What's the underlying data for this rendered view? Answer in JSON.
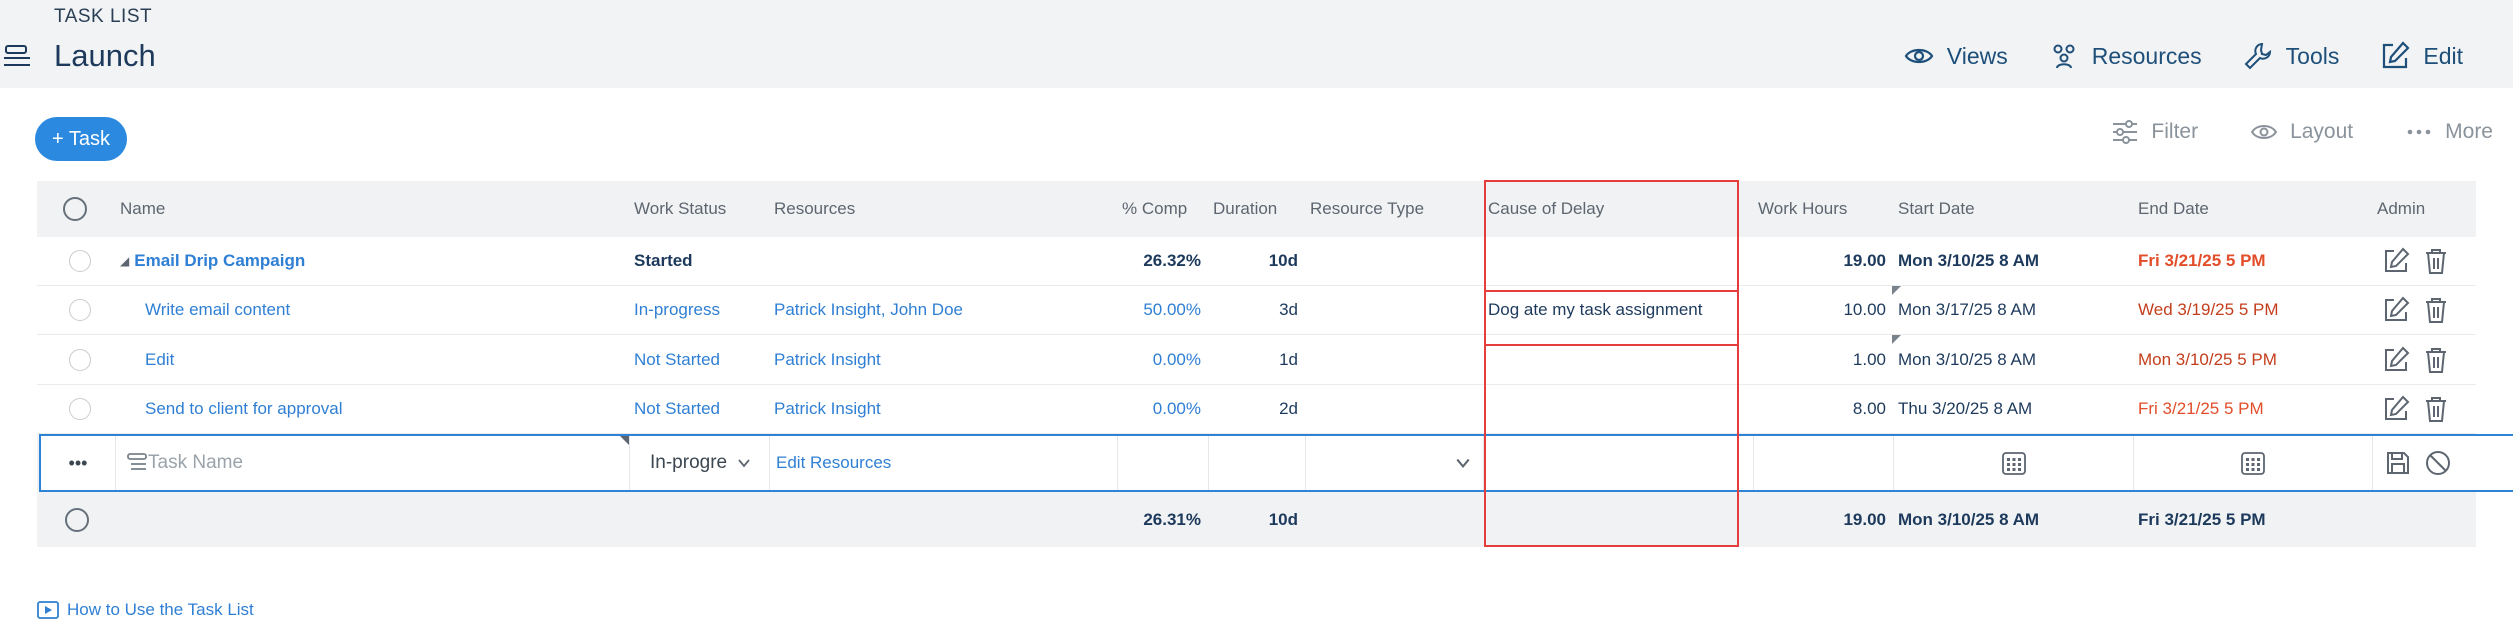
{
  "header": {
    "eyebrow": "TASK LIST",
    "title": "Launch"
  },
  "top_actions": {
    "views": "Views",
    "resources": "Resources",
    "tools": "Tools",
    "edit": "Edit"
  },
  "toolbar": {
    "add_task": "+ Task",
    "filter": "Filter",
    "layout": "Layout",
    "more": "More"
  },
  "columns": {
    "name": "Name",
    "work_status": "Work Status",
    "resources": "Resources",
    "pct_comp": "% Comp",
    "duration": "Duration",
    "resource_type": "Resource Type",
    "cause_of_delay": "Cause of Delay",
    "work_hours": "Work Hours",
    "start_date": "Start Date",
    "end_date": "End Date",
    "admin": "Admin"
  },
  "rows": [
    {
      "name": "Email Drip Campaign",
      "status": "Started",
      "resources": "",
      "pct": "26.32%",
      "duration": "10d",
      "resource_type": "",
      "cause": "",
      "hours": "19.00",
      "start": "Mon 3/10/25 8 AM",
      "end": "Fri 3/21/25 5 PM"
    },
    {
      "name": "Write email content",
      "status": "In-progress",
      "resources": "Patrick Insight, John Doe",
      "pct": "50.00%",
      "duration": "3d",
      "resource_type": "",
      "cause": "Dog ate my task assignment",
      "hours": "10.00",
      "start": "Mon 3/17/25 8 AM",
      "end": "Wed 3/19/25 5 PM"
    },
    {
      "name": "Edit",
      "status": "Not Started",
      "resources": "Patrick Insight",
      "pct": "0.00%",
      "duration": "1d",
      "resource_type": "",
      "cause": "",
      "hours": "1.00",
      "start": "Mon 3/10/25 8 AM",
      "end": "Mon 3/10/25 5 PM"
    },
    {
      "name": "Send to client for approval",
      "status": "Not Started",
      "resources": "Patrick Insight",
      "pct": "0.00%",
      "duration": "2d",
      "resource_type": "",
      "cause": "",
      "hours": "8.00",
      "start": "Thu 3/20/25 8 AM",
      "end": "Fri 3/21/25 5 PM"
    }
  ],
  "new_row": {
    "more": "•••",
    "name_placeholder": "Task Name",
    "status_value": "In-progre",
    "edit_resources": "Edit Resources"
  },
  "totals": {
    "pct": "26.31%",
    "duration": "10d",
    "hours": "19.00",
    "start": "Mon 3/10/25 8 AM",
    "end": "Fri 3/21/25 5 PM"
  },
  "help_link": "How to Use the Task List",
  "colors": {
    "accent": "#2b8ae0",
    "link": "#2f7fd4",
    "late_red": "#e24d2a",
    "highlight_box": "#e53c3c"
  }
}
